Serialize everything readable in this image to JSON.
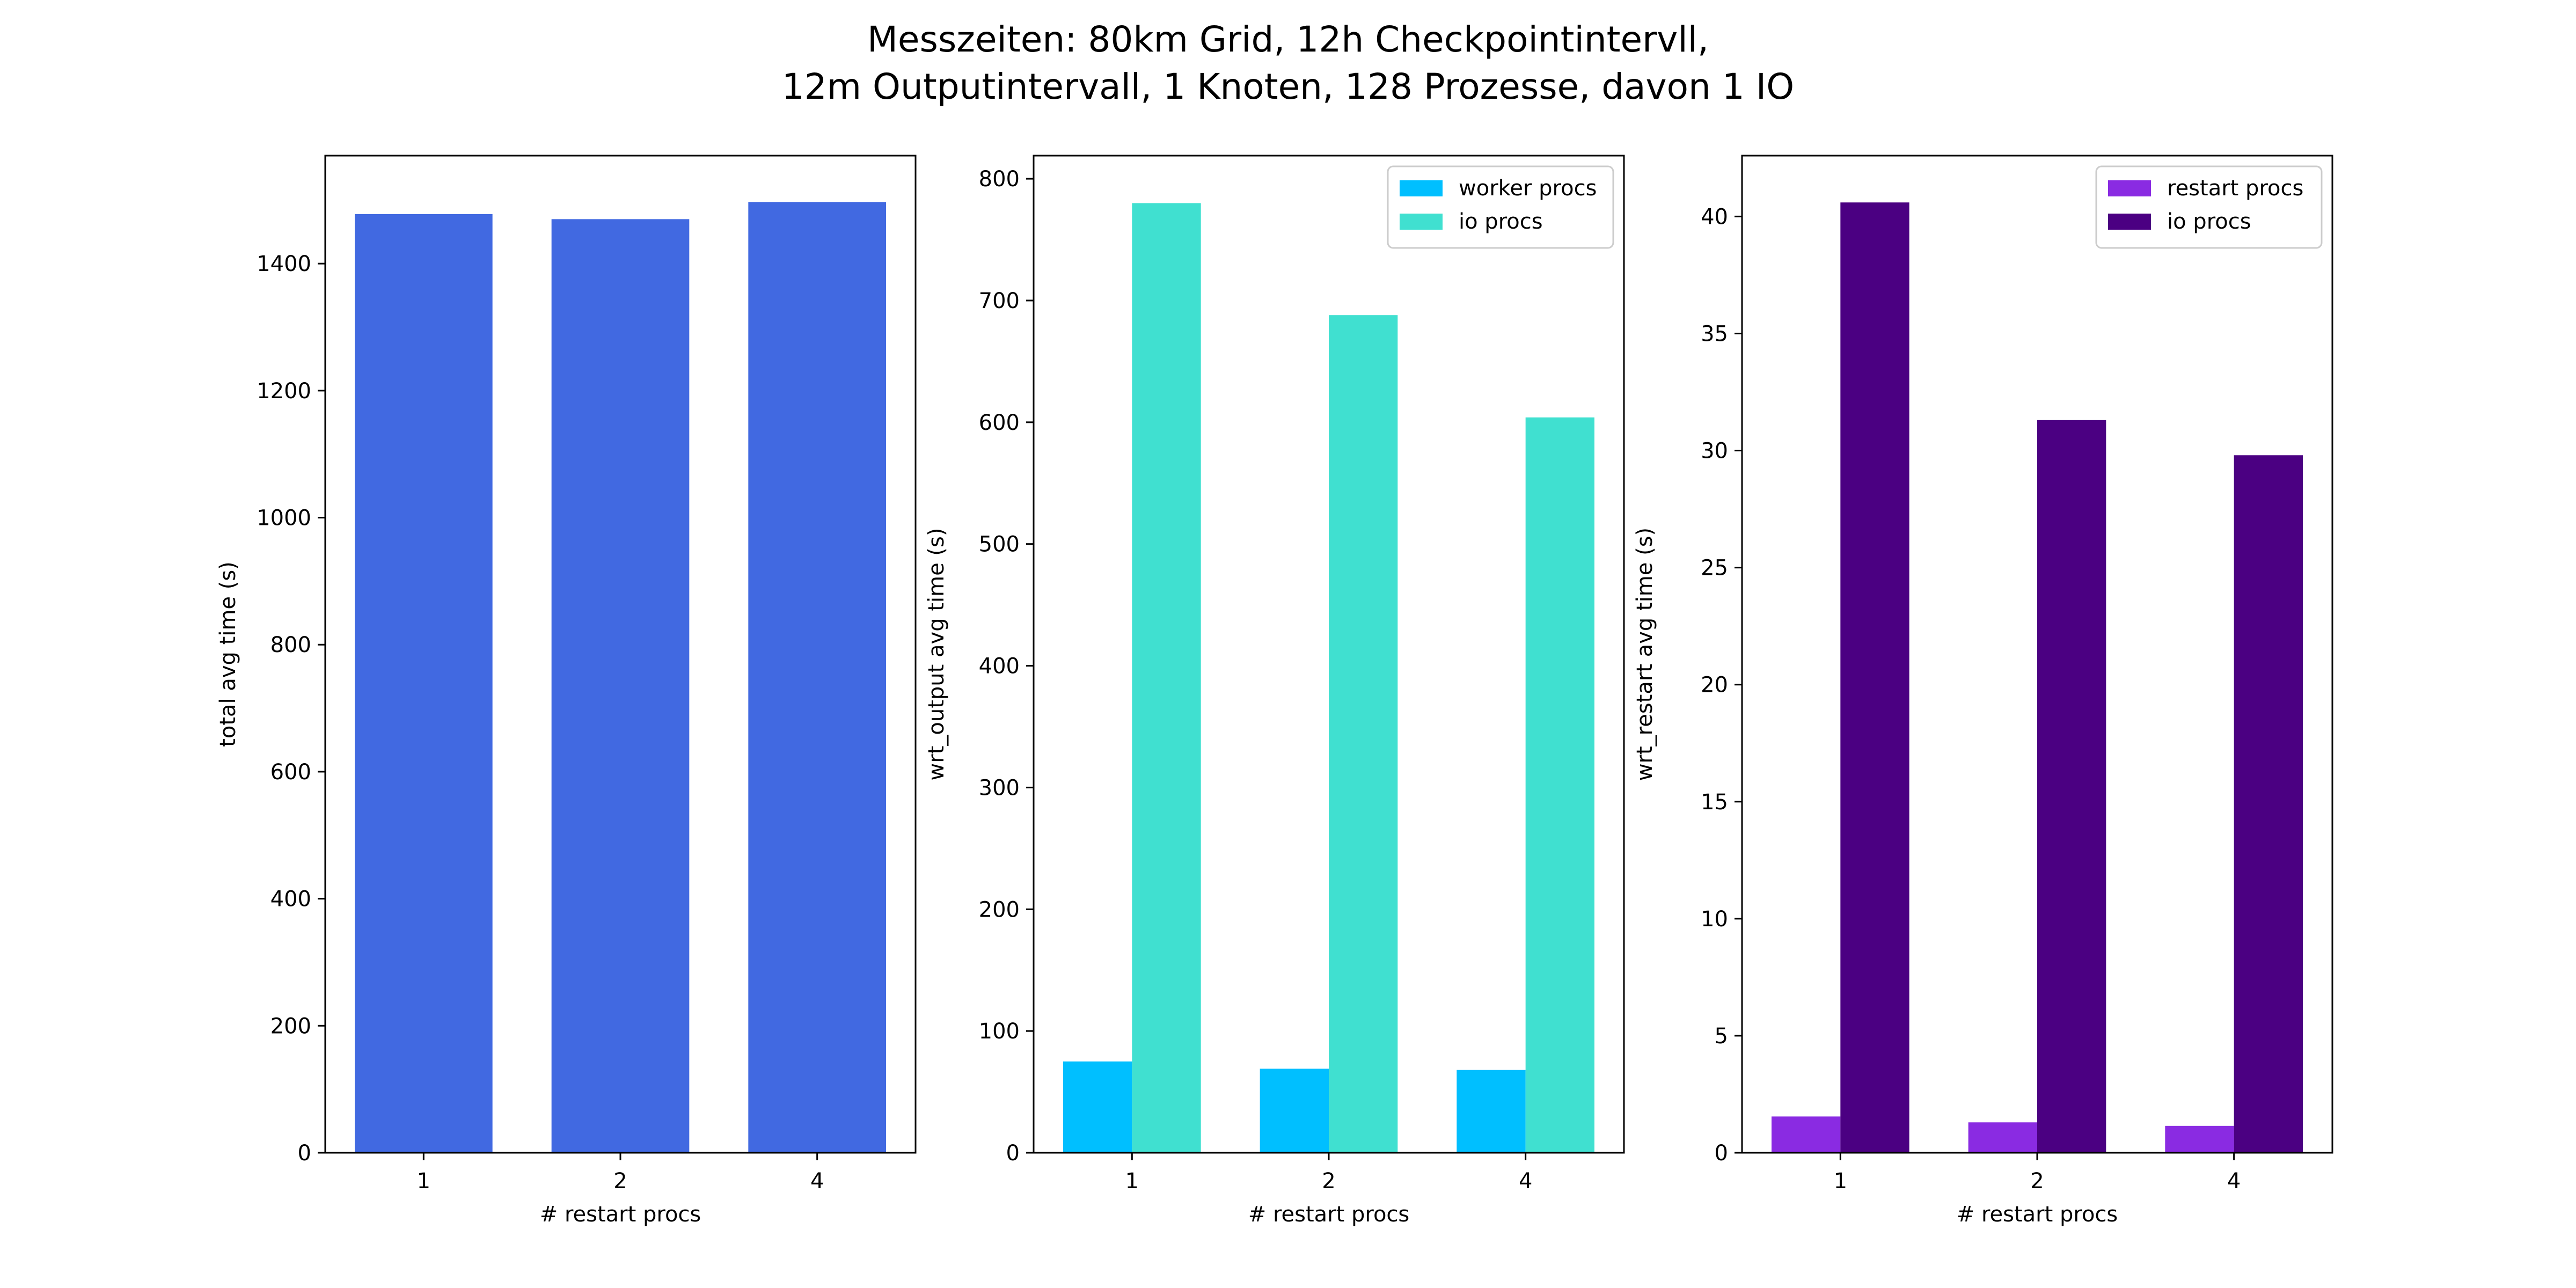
{
  "figure": {
    "title_line1": "Messzeiten: 80km Grid, 12h Checkpointintervll,",
    "title_line2": "12m Outputintervall, 1 Knoten, 128 Prozesse, davon 1 IO"
  },
  "chart_data": [
    {
      "type": "bar",
      "categories": [
        "1",
        "2",
        "4"
      ],
      "series": [
        {
          "values": [
            1478,
            1470,
            1497
          ],
          "color": "#4169e1"
        }
      ],
      "xlabel": "# restart procs",
      "ylabel": "total avg time (s)",
      "ylim": [
        0,
        1570
      ],
      "yticks": [
        0,
        200,
        400,
        600,
        800,
        1000,
        1200,
        1400
      ],
      "legend": null
    },
    {
      "type": "bar",
      "categories": [
        "1",
        "2",
        "4"
      ],
      "series": [
        {
          "name": "worker procs",
          "values": [
            75,
            69,
            68
          ],
          "color": "#00bfff"
        },
        {
          "name": "io procs",
          "values": [
            780,
            688,
            604
          ],
          "color": "#40e0d0"
        }
      ],
      "xlabel": "# restart procs",
      "ylabel": "wrt_output avg time (s)",
      "ylim": [
        0,
        819
      ],
      "yticks": [
        0,
        100,
        200,
        300,
        400,
        500,
        600,
        700,
        800
      ],
      "legend": "upper-right"
    },
    {
      "type": "bar",
      "categories": [
        "1",
        "2",
        "4"
      ],
      "series": [
        {
          "name": "restart procs",
          "values": [
            1.55,
            1.3,
            1.15
          ],
          "color": "#8a2be2"
        },
        {
          "name": "io procs",
          "values": [
            40.6,
            31.3,
            29.8
          ],
          "color": "#4b0082"
        }
      ],
      "xlabel": "# restart procs",
      "ylabel": "wrt_restart avg time (s)",
      "ylim": [
        0,
        42.6
      ],
      "yticks": [
        0,
        5,
        10,
        15,
        20,
        25,
        30,
        35,
        40
      ],
      "legend": "upper-right"
    }
  ]
}
